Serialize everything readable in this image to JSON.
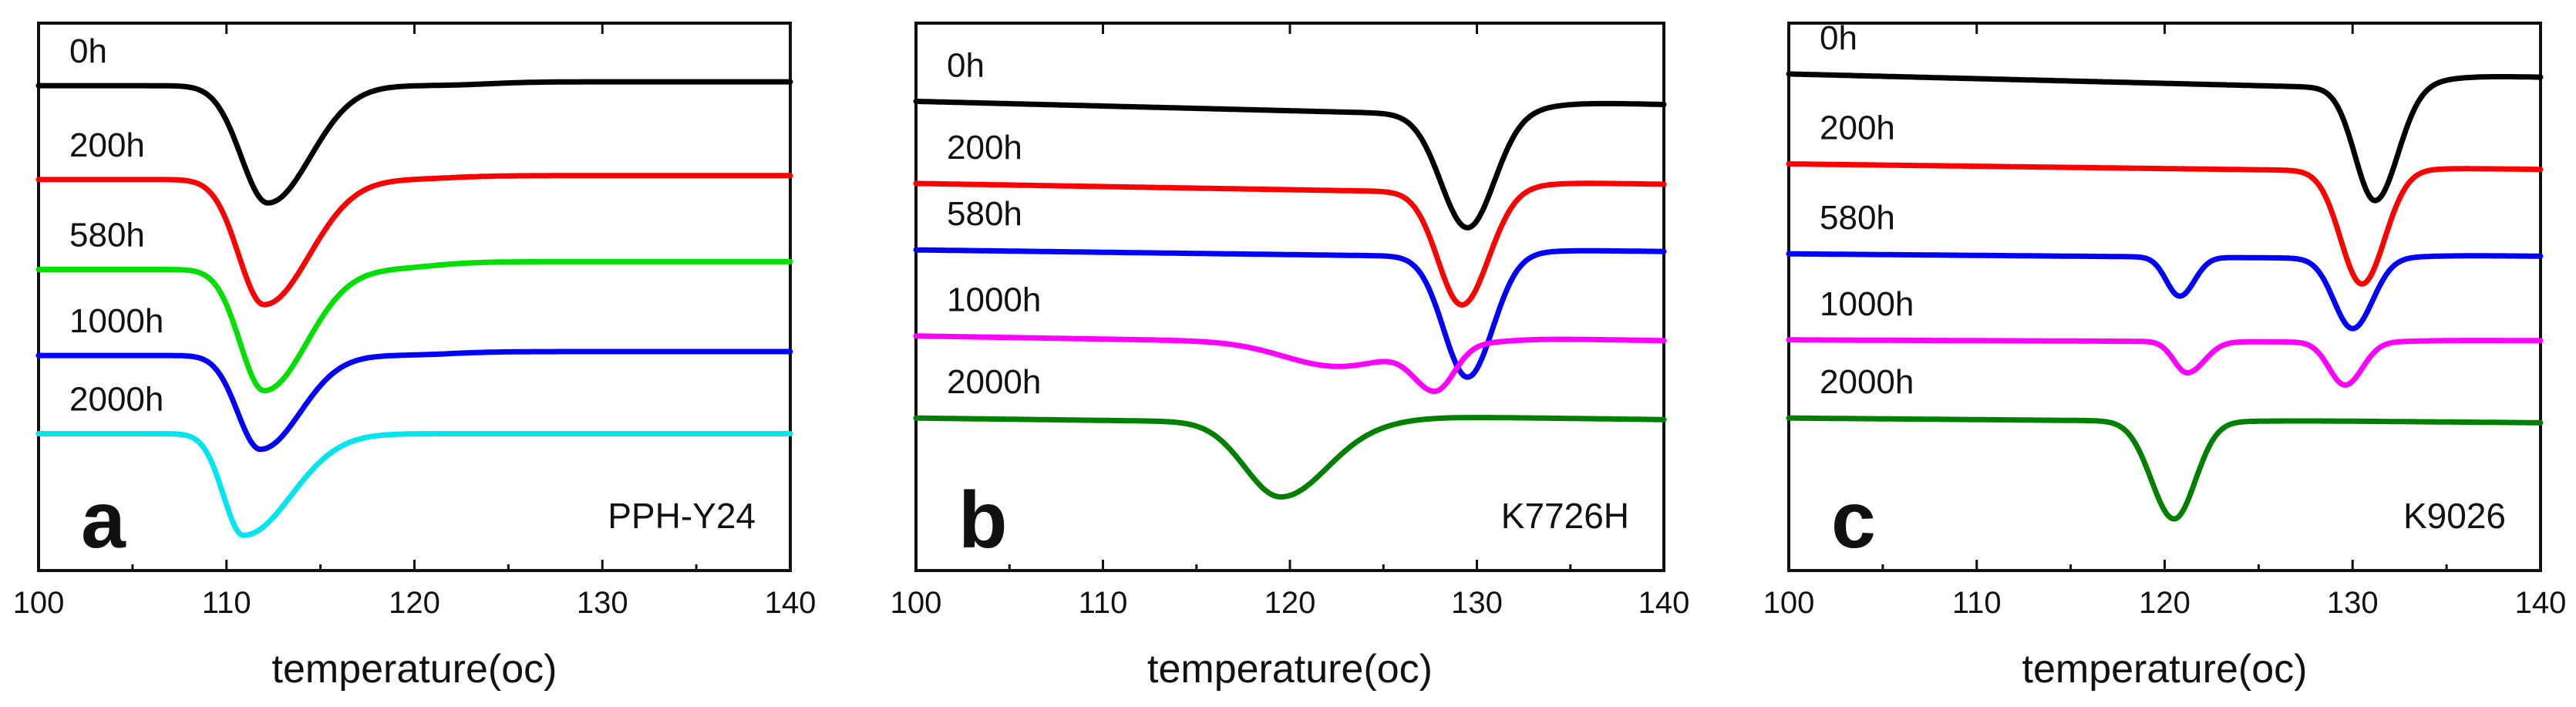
{
  "figure": {
    "description_type": "DSC-style thermograms of three polymer samples",
    "x_axis_label": "temperature(oc)"
  },
  "chart_data": [
    {
      "type": "line",
      "panel_letter": "a",
      "sample_label": "PPH-Y24",
      "xlabel": "temperature(oc)",
      "ylabel": "",
      "xlim": [
        100,
        140
      ],
      "ylim": [
        0,
        7
      ],
      "x_ticks": [
        100,
        110,
        120,
        130,
        140
      ],
      "grid": false,
      "legend": "inline-left",
      "series": [
        {
          "name": "0h",
          "color": "#000000",
          "baseline": 6.2,
          "slope": 0.0,
          "rise_step": {
            "x": 124,
            "dy": 0.05
          },
          "dips": [
            {
              "x": 112.2,
              "depth": 1.5,
              "wl": 2.0,
              "wr": 3.2
            }
          ]
        },
        {
          "name": "200h",
          "color": "#ff0000",
          "baseline": 5.0,
          "slope": 0.0,
          "rise_step": {
            "x": 122,
            "dy": 0.05
          },
          "dips": [
            {
              "x": 112.0,
              "depth": 1.6,
              "wl": 1.9,
              "wr": 3.4
            }
          ]
        },
        {
          "name": "580h",
          "color": "#00e000",
          "baseline": 3.85,
          "slope": 0.0,
          "rise_step": {
            "x": 121,
            "dy": 0.1
          },
          "dips": [
            {
              "x": 112.0,
              "depth": 1.55,
              "wl": 1.8,
              "wr": 3.2
            }
          ]
        },
        {
          "name": "1000h",
          "color": "#0000ff",
          "baseline": 2.75,
          "slope": 0.0,
          "rise_step": {
            "x": 122,
            "dy": 0.05
          },
          "dips": [
            {
              "x": 111.8,
              "depth": 1.2,
              "wl": 1.7,
              "wr": 3.0
            }
          ]
        },
        {
          "name": "2000h",
          "color": "#00e5ee",
          "baseline": 1.75,
          "slope": 0.0,
          "rise_step": {
            "x": 121,
            "dy": 0.0
          },
          "dips": [
            {
              "x": 110.9,
              "depth": 1.3,
              "wl": 1.5,
              "wr": 3.6
            }
          ]
        }
      ]
    },
    {
      "type": "line",
      "panel_letter": "b",
      "sample_label": "K7726H",
      "xlabel": "temperature(oc)",
      "ylabel": "",
      "xlim": [
        100,
        140
      ],
      "ylim": [
        0,
        7
      ],
      "x_ticks": [
        100,
        110,
        120,
        130,
        140
      ],
      "grid": false,
      "legend": "inline-left",
      "series": [
        {
          "name": "0h",
          "color": "#000000",
          "baseline": 6.0,
          "slope": -0.006,
          "rise_step": {
            "x": 133,
            "dy": 0.2
          },
          "dips": [
            {
              "x": 129.5,
              "depth": 1.45,
              "wl": 2.0,
              "wr": 2.0
            }
          ]
        },
        {
          "name": "200h",
          "color": "#ff0000",
          "baseline": 4.95,
          "slope": -0.004,
          "rise_step": {
            "x": 132,
            "dy": 0.15
          },
          "dips": [
            {
              "x": 129.2,
              "depth": 1.45,
              "wl": 1.8,
              "wr": 2.0
            }
          ]
        },
        {
          "name": "580h",
          "color": "#0000ff",
          "baseline": 4.1,
          "slope": -0.003,
          "rise_step": {
            "x": 132,
            "dy": 0.1
          },
          "dips": [
            {
              "x": 129.5,
              "depth": 1.55,
              "wl": 1.8,
              "wr": 1.9
            }
          ]
        },
        {
          "name": "1000h",
          "color": "#ff00ff",
          "baseline": 3.0,
          "slope": -0.004,
          "rise_step": {
            "x": 131,
            "dy": 0.1
          },
          "dips": [
            {
              "x": 127.8,
              "depth": 0.55,
              "wl": 1.6,
              "wr": 1.4
            },
            {
              "x": 122.5,
              "depth": 0.3,
              "wl": 4.0,
              "wr": 4.0
            }
          ]
        },
        {
          "name": "2000h",
          "color": "#008000",
          "baseline": 1.95,
          "slope": -0.003,
          "rise_step": {
            "x": 126,
            "dy": 0.1
          },
          "dips": [
            {
              "x": 119.5,
              "depth": 0.95,
              "wl": 2.7,
              "wr": 3.5
            }
          ]
        }
      ]
    },
    {
      "type": "line",
      "panel_letter": "c",
      "sample_label": "K9026",
      "xlabel": "temperature(oc)",
      "ylabel": "",
      "xlim": [
        100,
        140
      ],
      "ylim": [
        0,
        7
      ],
      "x_ticks": [
        100,
        110,
        120,
        130,
        140
      ],
      "grid": false,
      "legend": "inline-left",
      "series": [
        {
          "name": "0h",
          "color": "#000000",
          "baseline": 6.35,
          "slope": -0.006,
          "rise_step": {
            "x": 134,
            "dy": 0.2
          },
          "dips": [
            {
              "x": 131.2,
              "depth": 1.45,
              "wl": 1.5,
              "wr": 1.7
            }
          ]
        },
        {
          "name": "200h",
          "color": "#ff0000",
          "baseline": 5.2,
          "slope": -0.003,
          "rise_step": {
            "x": 133,
            "dy": 0.05
          },
          "dips": [
            {
              "x": 130.5,
              "depth": 1.45,
              "wl": 1.6,
              "wr": 1.7
            }
          ]
        },
        {
          "name": "580h",
          "color": "#0000ff",
          "baseline": 4.05,
          "slope": -0.002,
          "rise_step": {
            "x": 133,
            "dy": 0.05
          },
          "dips": [
            {
              "x": 120.8,
              "depth": 0.5,
              "wl": 1.0,
              "wr": 1.1
            },
            {
              "x": 130.0,
              "depth": 0.9,
              "wl": 1.4,
              "wr": 1.5
            }
          ]
        },
        {
          "name": "1000h",
          "color": "#ff00ff",
          "baseline": 2.95,
          "slope": -0.001,
          "rise_step": {
            "x": 133,
            "dy": 0.03
          },
          "dips": [
            {
              "x": 121.2,
              "depth": 0.4,
              "wl": 1.0,
              "wr": 1.3
            },
            {
              "x": 129.6,
              "depth": 0.55,
              "wl": 1.2,
              "wr": 1.3
            }
          ]
        },
        {
          "name": "2000h",
          "color": "#008000",
          "baseline": 1.95,
          "slope": -0.002,
          "rise_step": {
            "x": 125,
            "dy": 0.02
          },
          "dips": [
            {
              "x": 120.5,
              "depth": 1.25,
              "wl": 1.7,
              "wr": 1.6
            }
          ]
        }
      ]
    }
  ]
}
